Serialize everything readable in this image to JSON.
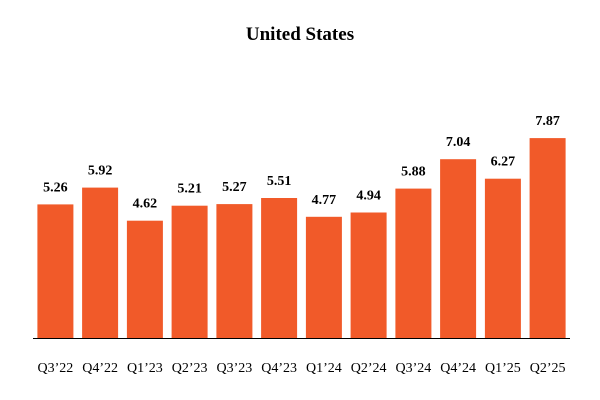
{
  "chart_data": {
    "type": "bar",
    "title": "United States",
    "categories": [
      "Q3’22",
      "Q4’22",
      "Q1’23",
      "Q2’23",
      "Q3’23",
      "Q4’23",
      "Q1’24",
      "Q2’24",
      "Q3’24",
      "Q4’24",
      "Q1’25",
      "Q2’25"
    ],
    "values": [
      5.26,
      5.92,
      4.62,
      5.21,
      5.27,
      5.51,
      4.77,
      4.94,
      5.88,
      7.04,
      6.27,
      7.87
    ],
    "value_labels": [
      "5.26",
      "5.92",
      "4.62",
      "5.21",
      "5.27",
      "5.51",
      "4.77",
      "4.94",
      "5.88",
      "7.04",
      "6.27",
      "7.87"
    ],
    "xlabel": "",
    "ylabel": "",
    "ylim": [
      0,
      9.5
    ],
    "grid": false,
    "bar_color": "#F15A29",
    "axis_color": "#000000"
  }
}
